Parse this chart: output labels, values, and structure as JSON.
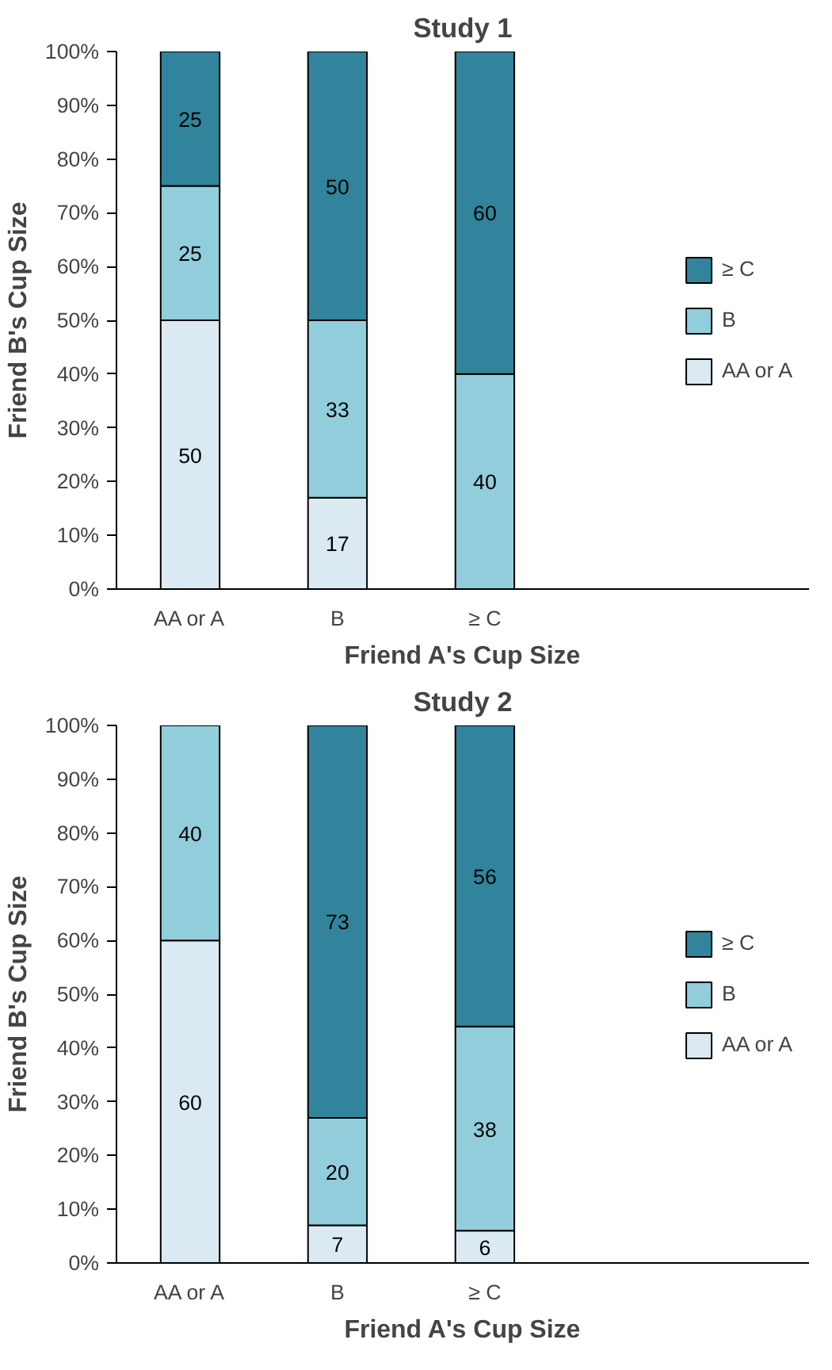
{
  "chart_data": [
    {
      "type": "bar",
      "title": "Study 1",
      "xlabel": "Friend A's Cup Size",
      "ylabel": "Friend B's Cup Size",
      "categories": [
        "AA or A",
        "B",
        "≥ C"
      ],
      "stacked": true,
      "ylim": [
        0,
        100
      ],
      "yticks": [
        {
          "value": 0,
          "label": "0%"
        },
        {
          "value": 10,
          "label": "10%"
        },
        {
          "value": 20,
          "label": "20%"
        },
        {
          "value": 30,
          "label": "30%"
        },
        {
          "value": 40,
          "label": "40%"
        },
        {
          "value": 50,
          "label": "50%"
        },
        {
          "value": 60,
          "label": "60%"
        },
        {
          "value": 70,
          "label": "70%"
        },
        {
          "value": 80,
          "label": "80%"
        },
        {
          "value": 90,
          "label": "90%"
        },
        {
          "value": 100,
          "label": "100%"
        }
      ],
      "grid": false,
      "legend": "right",
      "series": [
        {
          "name": "AA or A",
          "color": "#dbeaf2",
          "values": [
            50,
            17,
            null
          ],
          "value_labels": [
            "50",
            "17",
            null
          ]
        },
        {
          "name": "B",
          "color": "#92cddc",
          "values": [
            25,
            33,
            40
          ],
          "value_labels": [
            "25",
            "33",
            "40"
          ]
        },
        {
          "name": "≥ C",
          "color": "#31849b",
          "values": [
            25,
            50,
            60
          ],
          "value_labels": [
            "25",
            "50",
            "60"
          ]
        }
      ]
    },
    {
      "type": "bar",
      "title": "Study 2",
      "xlabel": "Friend A's Cup Size",
      "ylabel": "Friend B's Cup Size",
      "categories": [
        "AA or A",
        "B",
        "≥ C"
      ],
      "stacked": true,
      "ylim": [
        0,
        100
      ],
      "yticks": [
        {
          "value": 0,
          "label": "0%"
        },
        {
          "value": 10,
          "label": "10%"
        },
        {
          "value": 20,
          "label": "20%"
        },
        {
          "value": 30,
          "label": "30%"
        },
        {
          "value": 40,
          "label": "40%"
        },
        {
          "value": 50,
          "label": "50%"
        },
        {
          "value": 60,
          "label": "60%"
        },
        {
          "value": 70,
          "label": "70%"
        },
        {
          "value": 80,
          "label": "80%"
        },
        {
          "value": 90,
          "label": "90%"
        },
        {
          "value": 100,
          "label": "100%"
        }
      ],
      "grid": false,
      "legend": "right",
      "series": [
        {
          "name": "AA or A",
          "color": "#dbeaf2",
          "values": [
            60,
            7,
            6
          ],
          "value_labels": [
            "60",
            "7",
            "6"
          ]
        },
        {
          "name": "B",
          "color": "#92cddc",
          "values": [
            40,
            20,
            38
          ],
          "value_labels": [
            "40",
            "20",
            "38"
          ]
        },
        {
          "name": "≥ C",
          "color": "#31849b",
          "values": [
            null,
            73,
            56
          ],
          "value_labels": [
            null,
            "73",
            "56"
          ]
        }
      ]
    }
  ]
}
